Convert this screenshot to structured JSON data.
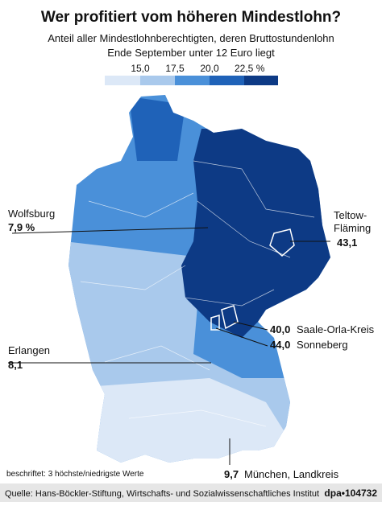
{
  "header": {
    "title": "Wer profitiert vom höheren Mindestlohn?",
    "subtitle": [
      "Anteil aller Mindestlohnberechtigten, deren Bruttostundenlohn",
      "Ende September unter 12 Euro liegt"
    ]
  },
  "legend": {
    "labels": [
      "15,0",
      "17,5",
      "20,0",
      "22,5 %"
    ]
  },
  "annotations": [
    {
      "name": "Wolfsburg",
      "value": "7,9 %"
    },
    {
      "name": "Teltow-\nFläming",
      "value": "43,1"
    },
    {
      "name": "Saale-Orla-Kreis",
      "value": "40,0"
    },
    {
      "name": "Sonneberg",
      "value": "44,0"
    },
    {
      "name": "Erlangen",
      "value": "8,1"
    },
    {
      "name": "München, Landkreis",
      "value": "9,7"
    }
  ],
  "note": "beschriftet: 3 höchste/niedrigste Werte",
  "footer": {
    "source": "Quelle: Hans-Böckler-Stiftung, Wirtschafts- und Sozialwissenschaftliches Institut",
    "id": "dpa•104732"
  }
}
